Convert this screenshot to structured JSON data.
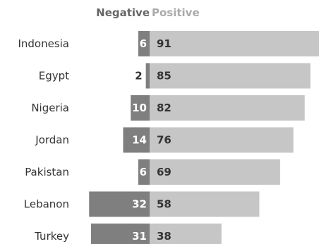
{
  "chart_data": {
    "type": "bar",
    "title": "",
    "legend": [
      "Negative",
      "Positive"
    ],
    "categories": [
      "Indonesia",
      "Egypt",
      "Nigeria",
      "Jordan",
      "Pakistan",
      "Lebanon",
      "Turkey"
    ],
    "series": [
      {
        "name": "Negative",
        "values": [
          6,
          2,
          10,
          14,
          6,
          32,
          31
        ]
      },
      {
        "name": "Positive",
        "values": [
          91,
          85,
          82,
          76,
          69,
          58,
          38
        ]
      }
    ],
    "colors": {
      "negative": "#7f7f7f",
      "positive": "#c6c6c6",
      "negative_label": "#666666",
      "positive_label": "#aaaaaa",
      "value_on_dark": "#ffffff",
      "value_on_light": "#333333"
    }
  }
}
